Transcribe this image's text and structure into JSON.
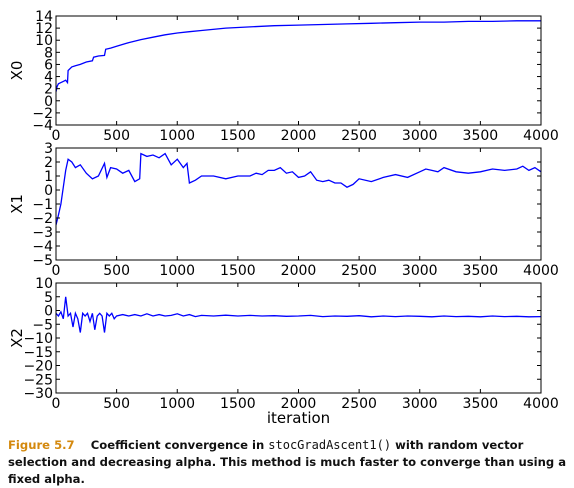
{
  "chart_data": [
    {
      "type": "line",
      "ylabel": "X0",
      "xlabel": "",
      "xlim": [
        0,
        4000
      ],
      "ylim": [
        -4,
        14
      ],
      "xticks": [
        0,
        500,
        1000,
        1500,
        2000,
        2500,
        3000,
        3500,
        4000
      ],
      "yticks": [
        -4,
        -2,
        0,
        2,
        4,
        6,
        8,
        10,
        12,
        14
      ],
      "color": "#0000ff",
      "series": [
        {
          "x": [
            0,
            10,
            20,
            40,
            60,
            80,
            95,
            100,
            130,
            160,
            200,
            250,
            300,
            310,
            350,
            400,
            410,
            450,
            500,
            600,
            700,
            800,
            900,
            1000,
            1100,
            1200,
            1400,
            1600,
            1800,
            2000,
            2200,
            2400,
            2600,
            2800,
            3000,
            3200,
            3400,
            3600,
            3800,
            4000
          ],
          "y": [
            1.5,
            2.4,
            2.8,
            3.0,
            3.2,
            3.4,
            3.0,
            5.0,
            5.6,
            5.8,
            6.0,
            6.4,
            6.6,
            7.2,
            7.4,
            7.5,
            8.5,
            8.7,
            9.0,
            9.6,
            10.1,
            10.5,
            10.9,
            11.2,
            11.4,
            11.6,
            12.0,
            12.2,
            12.4,
            12.5,
            12.6,
            12.7,
            12.8,
            12.9,
            13.0,
            13.0,
            13.1,
            13.1,
            13.2,
            13.2
          ]
        }
      ]
    },
    {
      "type": "line",
      "ylabel": "X1",
      "xlabel": "",
      "xlim": [
        0,
        4000
      ],
      "ylim": [
        -5,
        3
      ],
      "xticks": [
        0,
        500,
        1000,
        1500,
        2000,
        2500,
        3000,
        3500,
        4000
      ],
      "yticks": [
        -5,
        -4,
        -3,
        -2,
        -1,
        0,
        1,
        2,
        3
      ],
      "color": "#0000ff",
      "series": [
        {
          "x": [
            0,
            20,
            40,
            60,
            80,
            100,
            130,
            160,
            200,
            250,
            300,
            350,
            400,
            420,
            450,
            500,
            550,
            600,
            650,
            690,
            700,
            750,
            800,
            850,
            900,
            950,
            1000,
            1050,
            1080,
            1100,
            1150,
            1200,
            1300,
            1400,
            1500,
            1600,
            1650,
            1700,
            1750,
            1800,
            1850,
            1900,
            1950,
            2000,
            2050,
            2100,
            2150,
            2200,
            2250,
            2300,
            2350,
            2400,
            2450,
            2500,
            2600,
            2700,
            2800,
            2900,
            3000,
            3050,
            3100,
            3150,
            3200,
            3300,
            3400,
            3500,
            3600,
            3700,
            3800,
            3850,
            3900,
            3950,
            4000
          ],
          "y": [
            -2.5,
            -1.8,
            -1.0,
            0.2,
            1.4,
            2.2,
            2.0,
            1.6,
            1.8,
            1.2,
            0.8,
            1.0,
            1.9,
            0.9,
            1.6,
            1.5,
            1.2,
            1.4,
            0.6,
            0.8,
            2.6,
            2.4,
            2.5,
            2.3,
            2.6,
            1.8,
            2.2,
            1.6,
            1.9,
            0.5,
            0.7,
            1.0,
            1.0,
            0.8,
            1.0,
            1.0,
            1.2,
            1.1,
            1.4,
            1.4,
            1.6,
            1.2,
            1.3,
            0.9,
            1.0,
            1.3,
            0.7,
            0.6,
            0.7,
            0.5,
            0.5,
            0.2,
            0.4,
            0.8,
            0.6,
            0.9,
            1.1,
            0.9,
            1.3,
            1.5,
            1.4,
            1.3,
            1.6,
            1.3,
            1.2,
            1.3,
            1.5,
            1.4,
            1.5,
            1.7,
            1.4,
            1.6,
            1.3
          ]
        }
      ]
    },
    {
      "type": "line",
      "ylabel": "X2",
      "xlabel": "iteration",
      "xlim": [
        0,
        4000
      ],
      "ylim": [
        -30,
        10
      ],
      "xticks": [
        0,
        500,
        1000,
        1500,
        2000,
        2500,
        3000,
        3500,
        4000
      ],
      "yticks": [
        -30,
        -25,
        -20,
        -15,
        -10,
        -5,
        0,
        5,
        10
      ],
      "color": "#0000ff",
      "series": [
        {
          "x": [
            0,
            20,
            40,
            60,
            80,
            100,
            120,
            140,
            160,
            180,
            200,
            220,
            240,
            260,
            280,
            300,
            320,
            340,
            360,
            380,
            400,
            420,
            440,
            460,
            480,
            500,
            550,
            600,
            650,
            700,
            750,
            800,
            850,
            900,
            950,
            1000,
            1050,
            1100,
            1150,
            1200,
            1300,
            1400,
            1500,
            1600,
            1700,
            1800,
            1900,
            2000,
            2100,
            2200,
            2300,
            2400,
            2500,
            2600,
            2700,
            2800,
            2900,
            3000,
            3100,
            3200,
            3300,
            3400,
            3500,
            3600,
            3700,
            3800,
            3900,
            4000
          ],
          "y": [
            -1,
            -2,
            -0.5,
            -3,
            5,
            -2,
            -1,
            -6,
            -1,
            -3,
            -8,
            -1,
            -2,
            -1,
            -4,
            -1,
            -7,
            -2,
            -1,
            -2,
            -8,
            -1,
            -2,
            -1,
            -3,
            -2,
            -1.5,
            -2,
            -1.5,
            -2,
            -1.2,
            -2,
            -1.5,
            -2,
            -1.8,
            -1.2,
            -2,
            -1.5,
            -2.2,
            -1.8,
            -2,
            -1.7,
            -2,
            -1.8,
            -2,
            -1.9,
            -2.1,
            -2,
            -1.8,
            -2.2,
            -2,
            -2.1,
            -1.9,
            -2.3,
            -2,
            -2.2,
            -2,
            -2.1,
            -2.3,
            -2,
            -2.2,
            -2.1,
            -2.3,
            -2,
            -2.2,
            -2.1,
            -2.3,
            -2.2
          ]
        }
      ]
    }
  ],
  "caption": {
    "figure_label": "Figure 5.7",
    "text_before_code": "Coefficient convergence in ",
    "code": "stocGradAscent1()",
    "text_after_code": " with random vector selection and decreasing alpha. This method is much faster to converge than using a fixed alpha."
  }
}
